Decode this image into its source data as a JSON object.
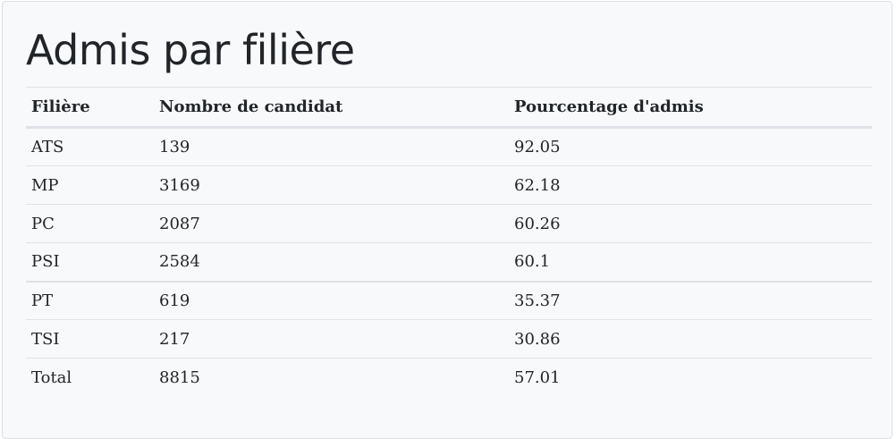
{
  "page": {
    "title": "Admis par filière"
  },
  "table": {
    "headers": [
      "Filière",
      "Nombre de candidat",
      "Pourcentage d'admis"
    ],
    "rows": [
      [
        "ATS",
        "139",
        "92.05"
      ],
      [
        "MP",
        "3169",
        "62.18"
      ],
      [
        "PC",
        "2087",
        "60.26"
      ],
      [
        "PSI",
        "2584",
        "60.1"
      ],
      [
        "PT",
        "619",
        "35.37"
      ],
      [
        "TSI",
        "217",
        "30.86"
      ],
      [
        "Total",
        "8815",
        "57.01"
      ]
    ]
  }
}
